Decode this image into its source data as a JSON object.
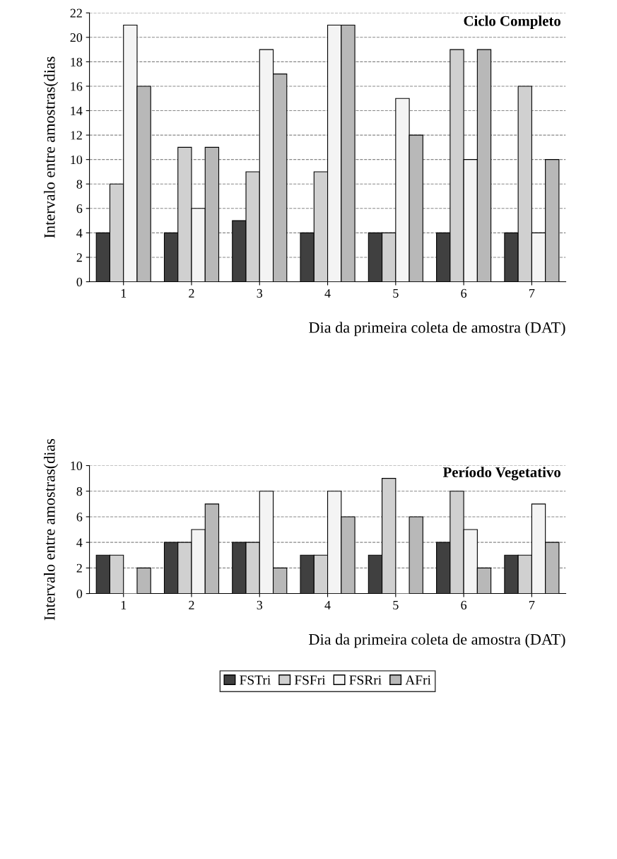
{
  "chart_data": [
    {
      "type": "bar",
      "title": "Ciclo Completo",
      "xlabel": "Dia da primeira coleta de amostra (DAT)",
      "ylabel": "Intervalo entre amostras(dias",
      "categories": [
        "1",
        "2",
        "3",
        "4",
        "5",
        "6",
        "7"
      ],
      "series": [
        {
          "color": "#404040",
          "values": [
            4,
            4,
            5,
            4,
            4,
            4,
            4
          ]
        },
        {
          "color": "#d0d0d0",
          "values": [
            8,
            11,
            9,
            9,
            4,
            19,
            16
          ]
        },
        {
          "color": "#f4f4f4",
          "values": [
            21,
            6,
            19,
            21,
            15,
            10,
            4
          ]
        },
        {
          "color": "#b8b8b8",
          "values": [
            16,
            11,
            17,
            21,
            12,
            19,
            10
          ]
        }
      ],
      "ylim": [
        0,
        22
      ],
      "yticks": [
        0,
        2,
        4,
        6,
        8,
        10,
        12,
        14,
        16,
        18,
        20,
        22
      ],
      "grid": "y",
      "legend": false
    },
    {
      "type": "bar",
      "title": "Período Vegetativo",
      "xlabel": "Dia da primeira coleta de amostra (DAT)",
      "ylabel": "Intervalo entre amostras(dias",
      "categories": [
        "1",
        "2",
        "3",
        "4",
        "5",
        "6",
        "7"
      ],
      "series": [
        {
          "name": "FSTri",
          "color": "#404040",
          "values": [
            3,
            4,
            4,
            3,
            3,
            4,
            3
          ]
        },
        {
          "name": "FSFri",
          "color": "#d0d0d0",
          "values": [
            3,
            4,
            4,
            3,
            9,
            8,
            3
          ]
        },
        {
          "name": "FSRri",
          "color": "#f4f4f4",
          "values": [
            0,
            5,
            8,
            8,
            0,
            5,
            7
          ]
        },
        {
          "name": "AFri",
          "color": "#b8b8b8",
          "values": [
            2,
            7,
            2,
            6,
            6,
            2,
            4
          ]
        }
      ],
      "ylim": [
        0,
        10
      ],
      "yticks": [
        0,
        2,
        4,
        6,
        8,
        10
      ],
      "grid": "y",
      "legend": "bottom"
    }
  ]
}
